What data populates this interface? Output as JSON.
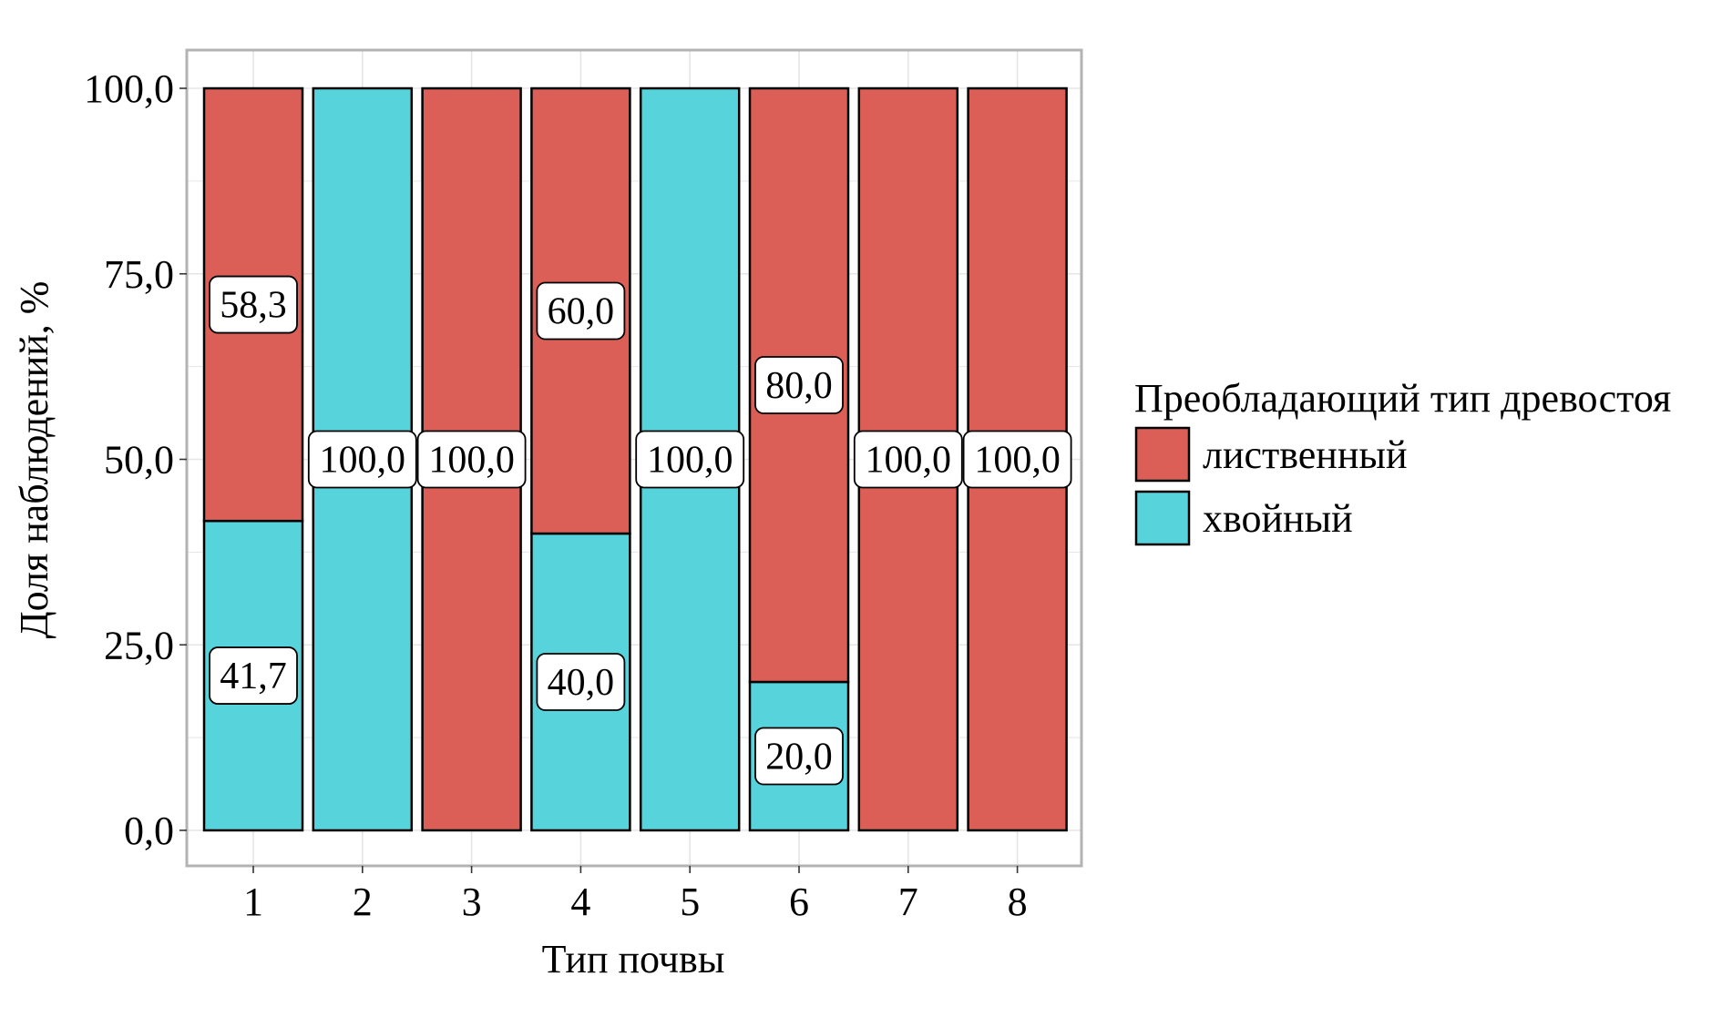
{
  "colors": {
    "deciduous": "#db5f57",
    "coniferous": "#57d3db",
    "grid": "#e5e5e5",
    "panel_border": "#b3b3b3",
    "bar_outline": "#000000",
    "label_fill": "#ffffff"
  },
  "chart_data": {
    "type": "bar",
    "stacked": true,
    "title": "",
    "xlabel": "Тип почвы",
    "ylabel": "Доля наблюдений, %",
    "ylim": [
      0,
      100
    ],
    "yticks": [
      0,
      25,
      50,
      75,
      100
    ],
    "ytick_labels": [
      "0,0",
      "25,0",
      "50,0",
      "75,0",
      "100,0"
    ],
    "categories": [
      "1",
      "2",
      "3",
      "4",
      "5",
      "6",
      "7",
      "8"
    ],
    "series": [
      {
        "name": "хвойный",
        "color_key": "coniferous",
        "values": [
          41.7,
          100.0,
          0,
          40.0,
          100.0,
          20.0,
          0,
          0
        ],
        "labels": [
          "41,7",
          "100,0",
          "",
          "40,0",
          "100,0",
          "20,0",
          "",
          ""
        ]
      },
      {
        "name": "лиственный",
        "color_key": "deciduous",
        "values": [
          58.3,
          0,
          100.0,
          60.0,
          0,
          80.0,
          100.0,
          100.0
        ],
        "labels": [
          "58,3",
          "",
          "100,0",
          "60,0",
          "",
          "80,0",
          "100,0",
          "100,0"
        ]
      }
    ],
    "grid": true,
    "legend": {
      "title": "Преобладающий тип древостоя",
      "placement": "right",
      "entries": [
        {
          "label": "лиственный",
          "color_key": "deciduous"
        },
        {
          "label": "хвойный",
          "color_key": "coniferous"
        }
      ]
    }
  }
}
